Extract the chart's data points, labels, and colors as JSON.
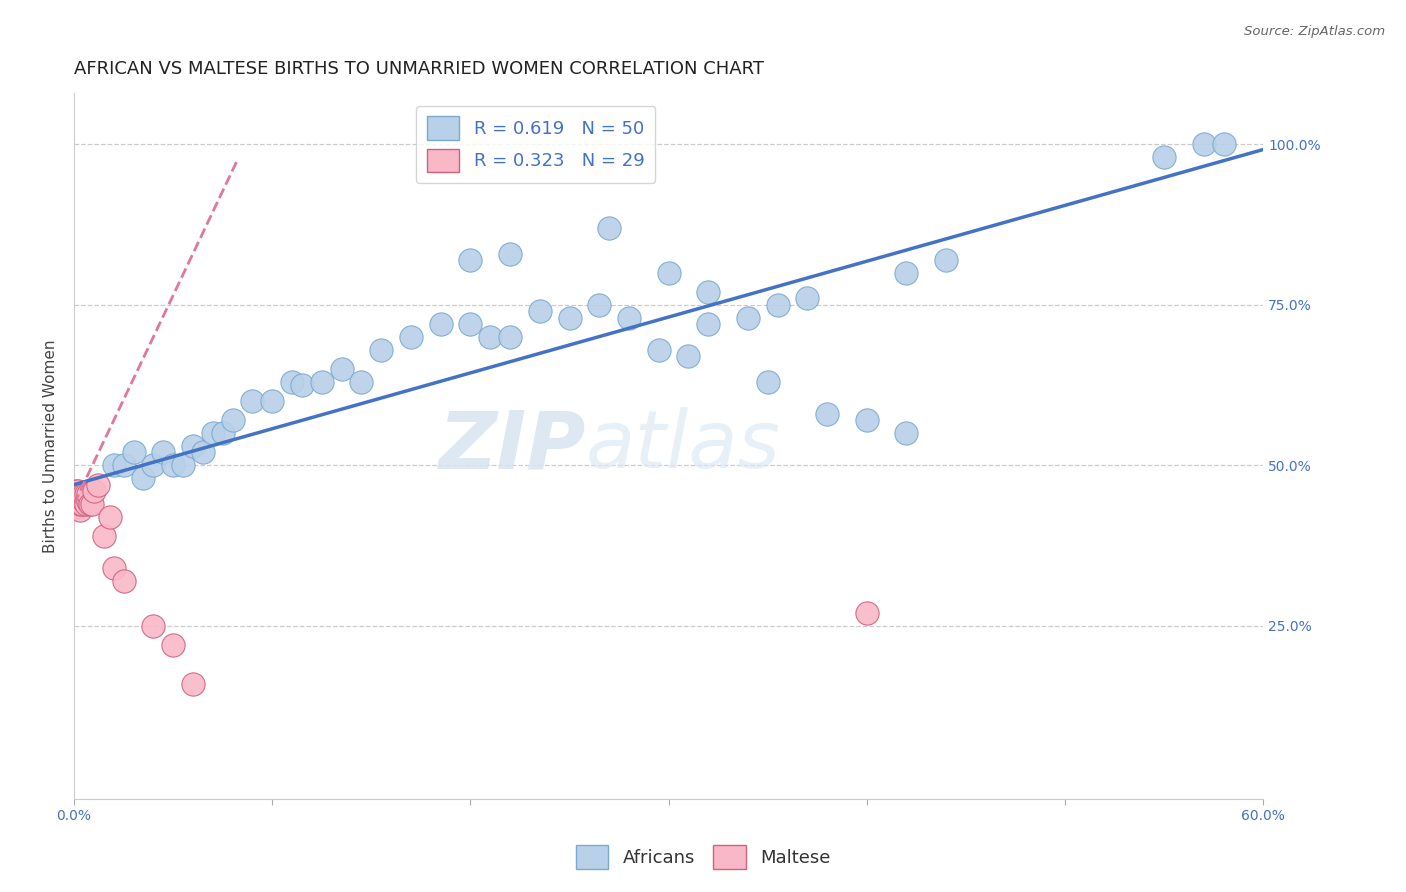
{
  "title": "AFRICAN VS MALTESE BIRTHS TO UNMARRIED WOMEN CORRELATION CHART",
  "source": "Source: ZipAtlas.com",
  "ylabel": "Births to Unmarried Women",
  "xlim": [
    0.0,
    0.6
  ],
  "ylim": [
    -0.02,
    1.08
  ],
  "xtick_positions": [
    0.0,
    0.1,
    0.2,
    0.3,
    0.4,
    0.5,
    0.6
  ],
  "xticklabels": [
    "0.0%",
    "",
    "",
    "",
    "",
    "",
    "60.0%"
  ],
  "ytick_positions": [
    0.0,
    0.25,
    0.5,
    0.75,
    1.0
  ],
  "yticklabels_right": [
    "",
    "25.0%",
    "50.0%",
    "75.0%",
    "100.0%"
  ],
  "watermark": "ZIPatlas",
  "africans_R": 0.619,
  "africans_N": 50,
  "maltese_R": 0.323,
  "maltese_N": 29,
  "blue_color": "#b8d0e8",
  "blue_line_color": "#4472c4",
  "pink_color": "#f9b8c8",
  "pink_line_color": "#e07898",
  "blue_dot_edge": "#7aaacf",
  "pink_dot_edge": "#d06080",
  "legend_R_color": "#4472c4",
  "africans_x": [
    0.02,
    0.025,
    0.03,
    0.035,
    0.04,
    0.045,
    0.05,
    0.055,
    0.06,
    0.065,
    0.07,
    0.075,
    0.08,
    0.09,
    0.1,
    0.11,
    0.115,
    0.125,
    0.135,
    0.145,
    0.155,
    0.17,
    0.185,
    0.2,
    0.21,
    0.22,
    0.235,
    0.25,
    0.265,
    0.28,
    0.295,
    0.31,
    0.32,
    0.34,
    0.355,
    0.37,
    0.2,
    0.22,
    0.27,
    0.3,
    0.32,
    0.35,
    0.38,
    0.4,
    0.42,
    0.44,
    0.42,
    0.55,
    0.57,
    0.58
  ],
  "africans_y": [
    0.5,
    0.5,
    0.52,
    0.48,
    0.5,
    0.52,
    0.5,
    0.5,
    0.53,
    0.52,
    0.55,
    0.55,
    0.57,
    0.6,
    0.6,
    0.63,
    0.625,
    0.63,
    0.65,
    0.63,
    0.68,
    0.7,
    0.72,
    0.72,
    0.7,
    0.7,
    0.74,
    0.73,
    0.75,
    0.73,
    0.68,
    0.67,
    0.72,
    0.73,
    0.75,
    0.76,
    0.82,
    0.83,
    0.87,
    0.8,
    0.77,
    0.63,
    0.58,
    0.57,
    0.8,
    0.82,
    0.55,
    0.98,
    1.0,
    1.0
  ],
  "maltese_x": [
    0.001,
    0.001,
    0.001,
    0.002,
    0.002,
    0.002,
    0.003,
    0.003,
    0.003,
    0.004,
    0.004,
    0.005,
    0.005,
    0.006,
    0.006,
    0.007,
    0.007,
    0.008,
    0.009,
    0.01,
    0.012,
    0.015,
    0.018,
    0.02,
    0.025,
    0.04,
    0.05,
    0.06,
    0.4
  ],
  "maltese_y": [
    0.44,
    0.45,
    0.46,
    0.435,
    0.45,
    0.46,
    0.43,
    0.44,
    0.455,
    0.44,
    0.455,
    0.445,
    0.455,
    0.44,
    0.455,
    0.445,
    0.455,
    0.44,
    0.44,
    0.46,
    0.47,
    0.39,
    0.42,
    0.34,
    0.32,
    0.25,
    0.22,
    0.16,
    0.27
  ],
  "title_fontsize": 13,
  "axis_label_fontsize": 11,
  "tick_fontsize": 10,
  "legend_fontsize": 13
}
